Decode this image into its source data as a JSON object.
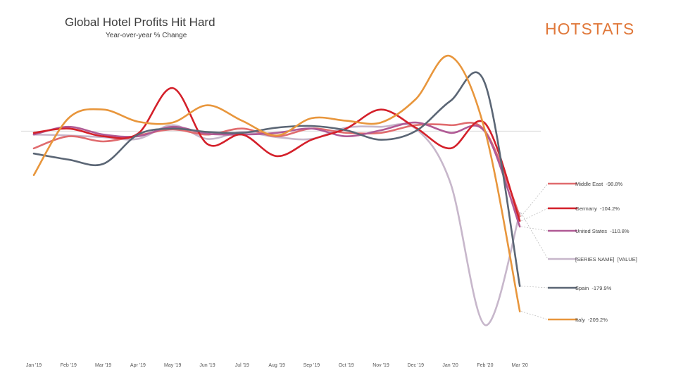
{
  "header": {
    "title": "Global Hotel Profits Hit Hard",
    "subtitle": "Year-over-year % Change",
    "logo": "HOTSTATS"
  },
  "chart_data": {
    "type": "line",
    "title": "Global Hotel Profits Hit Hard",
    "subtitle": "Year-over-year % Change",
    "xlabel": "",
    "ylabel": "",
    "categories": [
      "Jan '19",
      "Feb '19",
      "Mar '19",
      "Apr '19",
      "May '19",
      "Jun '19",
      "Jul '19",
      "Aug '19",
      "Sep '19",
      "Oct '19",
      "Nov '19",
      "Dec '19",
      "Jan '20",
      "Feb '20",
      "Mar '20"
    ],
    "ylim": [
      -230,
      95
    ],
    "zero_line": true,
    "grid": false,
    "legend_position": "right",
    "series": [
      {
        "name": "Middle East",
        "label": "Middle East  -98.8%",
        "color": "#e06b6e",
        "values": [
          -20,
          -6,
          -12,
          -5,
          2,
          -4,
          3,
          -6,
          3,
          -2,
          -2,
          7,
          7,
          0,
          -98.8
        ]
      },
      {
        "name": "Germany",
        "label": "Germany  -104.2%",
        "color": "#d4202a",
        "values": [
          -2,
          3,
          -6,
          -3,
          50,
          -15,
          -4,
          -29,
          -10,
          3,
          25,
          4,
          -20,
          9,
          -104.2
        ]
      },
      {
        "name": "United States",
        "label": "United States  -110.8%",
        "color": "#b05a95",
        "values": [
          -4,
          5,
          -4,
          -6,
          5,
          -3,
          -4,
          -2,
          3,
          -6,
          1,
          10,
          -2,
          -1,
          -110.8
        ]
      },
      {
        "name": "[SERIES NAME]",
        "label": "[SERIES NAME]  [VALUE]",
        "color": "#c7b7cb",
        "values": [
          -4,
          -5,
          -7,
          -9,
          7,
          -9,
          -1,
          -7,
          -9,
          4,
          5,
          3,
          -60,
          -225,
          -95
        ]
      },
      {
        "name": "Spain",
        "label": "Spain  -179.9%",
        "color": "#5b6675",
        "values": [
          -26,
          -33,
          -38,
          -4,
          3,
          -1,
          -2,
          4,
          6,
          1,
          -10,
          0,
          35,
          55,
          -179.9
        ]
      },
      {
        "name": "Italy",
        "label": "Italy  -209.2%",
        "color": "#e8963c",
        "values": [
          -51,
          15,
          25,
          11,
          10,
          30,
          12,
          -5,
          15,
          12,
          10,
          37,
          87,
          0,
          -209.2
        ]
      }
    ],
    "legend_entries": [
      "Middle East  -98.8%",
      "Germany  -104.2%",
      "United States  -110.8%",
      "[SERIES NAME]  [VALUE]",
      "Spain  -179.9%",
      "Italy  -209.2%"
    ]
  }
}
